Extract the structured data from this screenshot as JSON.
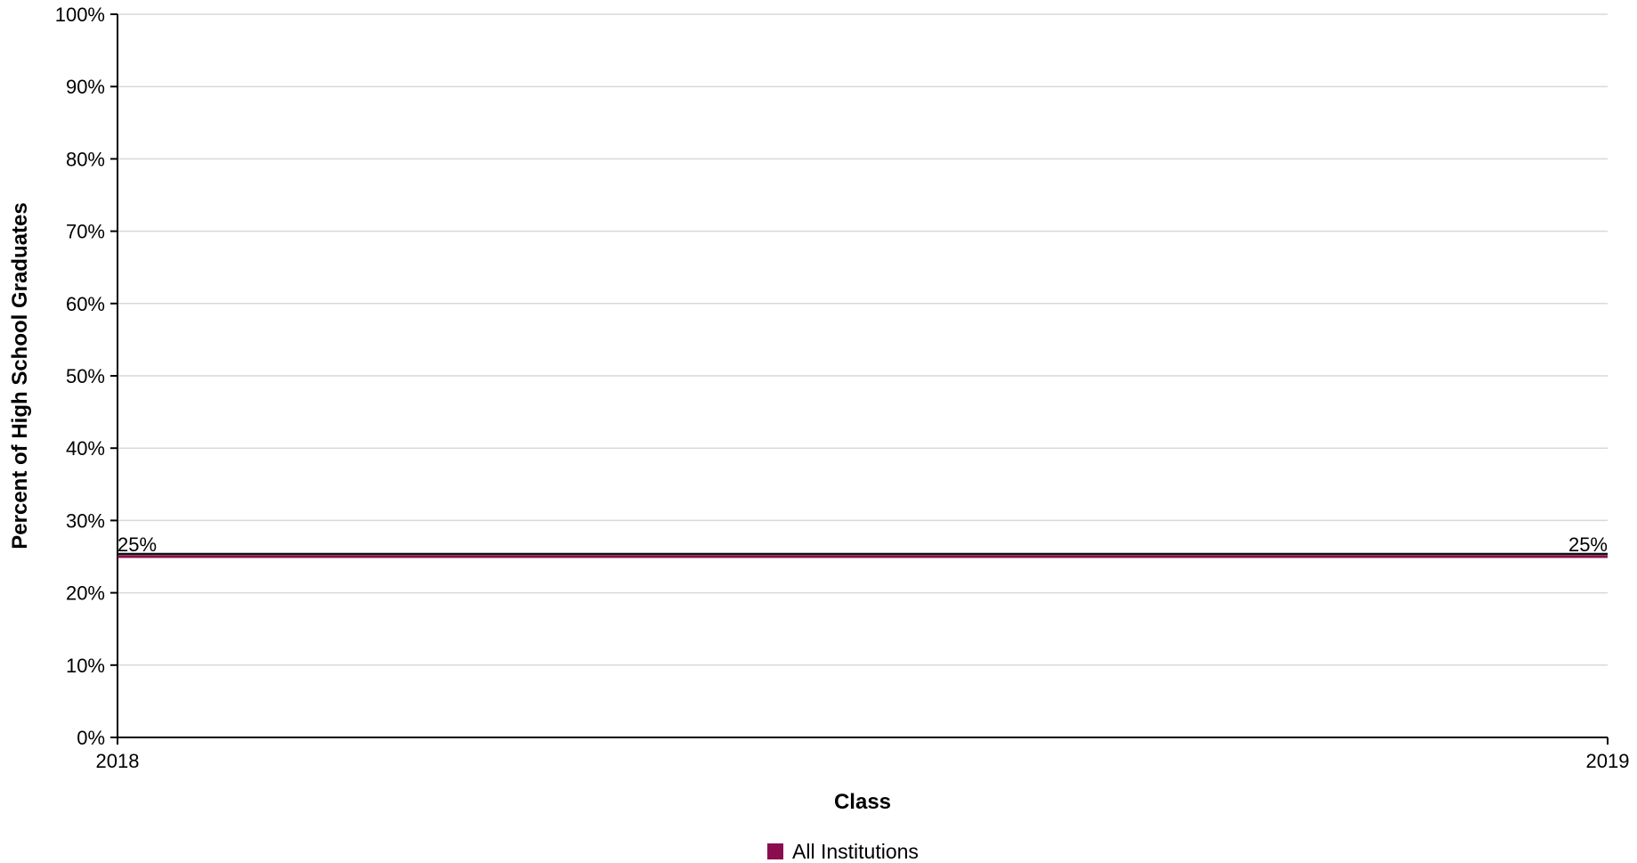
{
  "chart_data": {
    "type": "line",
    "title": "",
    "xlabel": "Class",
    "ylabel": "Percent of High School Graduates",
    "categories": [
      "2018",
      "2019"
    ],
    "ylim": [
      0,
      100
    ],
    "y_ticks": [
      0,
      10,
      20,
      30,
      40,
      50,
      60,
      70,
      80,
      90,
      100
    ],
    "y_tick_suffix": "%",
    "grid": true,
    "legend_position": "bottom-center",
    "series": [
      {
        "name": "All Institutions",
        "values": [
          25,
          25
        ],
        "data_labels": [
          "25%",
          "25%"
        ],
        "color": "#8B0D4F"
      }
    ],
    "colors": {
      "grid": "#d9d9d9",
      "axis": "#000000",
      "reference_line": "#111111"
    }
  }
}
